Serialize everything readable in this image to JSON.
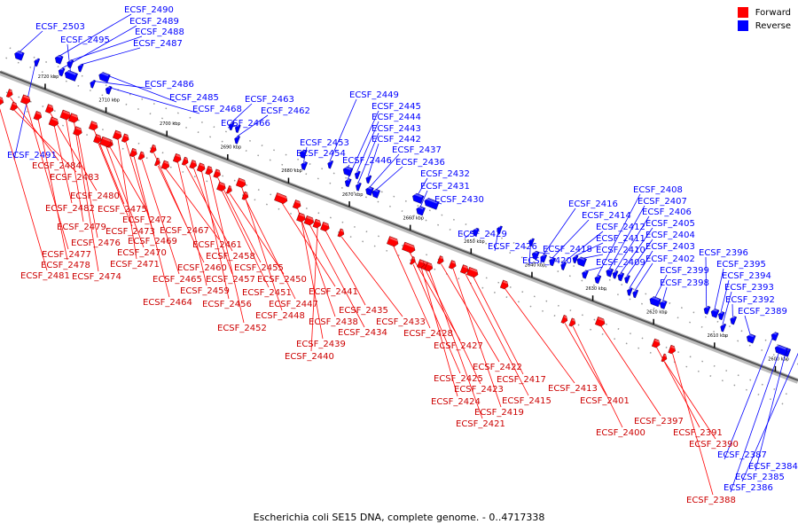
{
  "legend": {
    "forward_label": "Forward",
    "reverse_label": "Reverse",
    "forward_color": "#ff0000",
    "reverse_color": "#0000ff"
  },
  "caption": "Escherichia coli SE15 DNA, complete genome. - 0..4717338",
  "axis": {
    "ticks": [
      "2720 kbp",
      "2710 kbp",
      "2700 kbp",
      "2690 kbp",
      "2680 kbp",
      "2670 kbp",
      "2660 kbp",
      "2650 kbp",
      "2640 kbp",
      "2630 kbp",
      "2620 kbp",
      "2610 kbp",
      "2600 kbp"
    ]
  },
  "reverse_genes": [
    "ECSF_2503",
    "ECSF_2490",
    "ECSF_2489",
    "ECSF_2488",
    "ECSF_2495",
    "ECSF_2487",
    "ECSF_2486",
    "ECSF_2485",
    "ECSF_2468",
    "ECSF_2463",
    "ECSF_2462",
    "ECSF_2466",
    "ECSF_2491",
    "ECSF_2449",
    "ECSF_2445",
    "ECSF_2444",
    "ECSF_2443",
    "ECSF_2442",
    "ECSF_2453",
    "ECSF_2454",
    "ECSF_2437",
    "ECSF_2446",
    "ECSF_2436",
    "ECSF_2432",
    "ECSF_2431",
    "ECSF_2430",
    "ECSF_2408",
    "ECSF_2407",
    "ECSF_2416",
    "ECSF_2406",
    "ECSF_2414",
    "ECSF_2405",
    "ECSF_2412",
    "ECSF_2404",
    "ECSF_2429",
    "ECSF_2411",
    "ECSF_2403",
    "ECSF_2426",
    "ECSF_2418",
    "ECSF_2410",
    "ECSF_2402",
    "ECSF_2420",
    "ECSF_2409",
    "ECSF_2396",
    "ECSF_2399",
    "ECSF_2395",
    "ECSF_2398",
    "ECSF_2394",
    "ECSF_2393",
    "ECSF_2392",
    "ECSF_2389",
    "ECSF_2387",
    "ECSF_2384",
    "ECSF_2385",
    "ECSF_2386"
  ],
  "forward_genes": [
    "ECSF_2484",
    "ECSF_2483",
    "ECSF_2480",
    "ECSF_2482",
    "ECSF_2475",
    "ECSF_2472",
    "ECSF_2479",
    "ECSF_2473",
    "ECSF_2467",
    "ECSF_2476",
    "ECSF_2469",
    "ECSF_2461",
    "ECSF_2477",
    "ECSF_2470",
    "ECSF_2458",
    "ECSF_2478",
    "ECSF_2471",
    "ECSF_2460",
    "ECSF_2455",
    "ECSF_2481",
    "ECSF_2474",
    "ECSF_2465",
    "ECSF_2457",
    "ECSF_2450",
    "ECSF_2459",
    "ECSF_2451",
    "ECSF_2441",
    "ECSF_2464",
    "ECSF_2456",
    "ECSF_2447",
    "ECSF_2448",
    "ECSF_2435",
    "ECSF_2438",
    "ECSF_2433",
    "ECSF_2452",
    "ECSF_2434",
    "ECSF_2428",
    "ECSF_2439",
    "ECSF_2427",
    "ECSF_2440",
    "ECSF_2422",
    "ECSF_2425",
    "ECSF_2417",
    "ECSF_2423",
    "ECSF_2413",
    "ECSF_2424",
    "ECSF_2415",
    "ECSF_2401",
    "ECSF_2419",
    "ECSF_2421",
    "ECSF_2397",
    "ECSF_2400",
    "ECSF_2391",
    "ECSF_2390",
    "ECSF_2388"
  ]
}
